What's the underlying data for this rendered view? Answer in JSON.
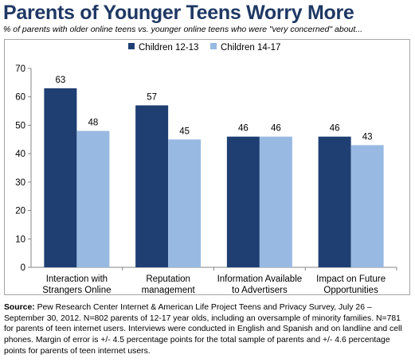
{
  "title": "Parents of Younger Teens Worry More",
  "subtitle": "% of parents with older online teens vs. younger online teens who were \"very concerned\" about...",
  "source": {
    "label": "Source:",
    "text": " Pew Research Center Internet & American Life Project Teens and Privacy Survey, July 26 – September 30, 2012. N=802 parents of 12-17 year olds, including an oversample of minority families. N=781 for parents of teen internet users.  Interviews were conducted in English and Spanish and on landline and cell phones.  Margin of error is +/- 4.5 percentage points for the total sample of parents and +/- 4.6 percentage points for parents of teen internet users."
  },
  "colors": {
    "series1": "#1f3f73",
    "series2": "#98b9e2",
    "title": "#1f3864"
  },
  "chart_data": {
    "type": "bar",
    "categories": [
      [
        "Interaction with",
        "Strangers Online"
      ],
      [
        "Reputation",
        "management"
      ],
      [
        "Information Available",
        "to Advertisers"
      ],
      [
        "Impact on Future",
        "Opportunities"
      ]
    ],
    "series": [
      {
        "name": "Children 12-13",
        "values": [
          63,
          57,
          46,
          46
        ]
      },
      {
        "name": "Children 14-17",
        "values": [
          48,
          45,
          46,
          43
        ]
      }
    ],
    "ylim": [
      0,
      70
    ],
    "yticks": [
      0,
      10,
      20,
      30,
      40,
      50,
      60,
      70
    ],
    "legend": "top-right",
    "grid": false
  }
}
